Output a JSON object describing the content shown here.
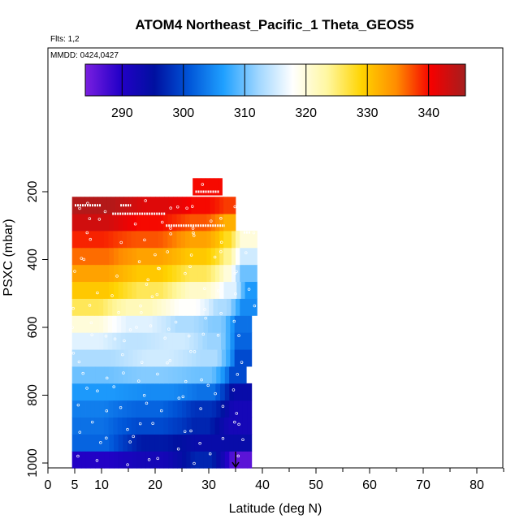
{
  "chart_data": {
    "type": "heatmap",
    "title": "ATOM4 Northeast_Pacific_1 Theta_GEOS5",
    "flights_note": "Flts: 1,2",
    "date_note": "MMDD: 0424,0427",
    "xlabel": "Latitude (deg N)",
    "ylabel": "PSXC (mbar)",
    "xlim": [
      0,
      85
    ],
    "ylim": [
      1000,
      100
    ],
    "x_ticks": [
      0,
      5,
      10,
      20,
      30,
      40,
      50,
      60,
      70,
      80
    ],
    "x_tick_labels": [
      "0",
      "5",
      "10",
      "20",
      "30",
      "40",
      "50",
      "60",
      "70",
      "80"
    ],
    "y_ticks": [
      1000,
      800,
      600,
      400,
      200
    ],
    "y_tick_labels": [
      "1000",
      "800",
      "600",
      "400",
      "200"
    ],
    "colorbar": {
      "range": [
        284,
        346
      ],
      "ticks": [
        290,
        300,
        310,
        320,
        330,
        340
      ],
      "tick_labels": [
        "290",
        "300",
        "310",
        "320",
        "330",
        "340"
      ],
      "colors": [
        "#7a1fe0",
        "#2400c8",
        "#0010a0",
        "#0055d8",
        "#1fa0ff",
        "#9fd6ff",
        "#ffffff",
        "#fff7a0",
        "#ffd400",
        "#ff8c00",
        "#f50000",
        "#a51e1e"
      ]
    },
    "marker_latitude": 35,
    "rows": [
      {
        "p": 990,
        "segments": [
          [
            4.5,
            14,
            290
          ],
          [
            14,
            25,
            292
          ],
          [
            25,
            33,
            297
          ],
          [
            33,
            38,
            286
          ]
        ]
      },
      {
        "p": 940,
        "segments": [
          [
            4.5,
            14,
            302
          ],
          [
            14,
            25,
            296
          ],
          [
            25,
            33,
            294
          ],
          [
            33,
            38,
            294
          ]
        ]
      },
      {
        "p": 890,
        "segments": [
          [
            4.5,
            13,
            303
          ],
          [
            13,
            25,
            300
          ],
          [
            25,
            32,
            297
          ],
          [
            32,
            38,
            292
          ]
        ]
      },
      {
        "p": 840,
        "segments": [
          [
            4.5,
            13,
            304
          ],
          [
            13,
            25,
            302
          ],
          [
            25,
            33,
            298
          ],
          [
            33,
            38,
            292
          ]
        ]
      },
      {
        "p": 790,
        "segments": [
          [
            4.5,
            15,
            306
          ],
          [
            15,
            26,
            305
          ],
          [
            26,
            33,
            303
          ],
          [
            33,
            38,
            294
          ]
        ]
      },
      {
        "p": 740,
        "segments": [
          [
            4.5,
            14,
            310
          ],
          [
            14,
            25,
            311
          ],
          [
            25,
            33,
            310
          ],
          [
            33,
            37,
            300
          ]
        ]
      },
      {
        "p": 690,
        "segments": [
          [
            4.5,
            15,
            313
          ],
          [
            15,
            26,
            315
          ],
          [
            26,
            34,
            313
          ],
          [
            34,
            38,
            300
          ]
        ]
      },
      {
        "p": 640,
        "segments": [
          [
            4.5,
            12,
            316
          ],
          [
            12,
            20,
            314
          ],
          [
            20,
            28,
            315
          ],
          [
            28,
            34,
            312
          ],
          [
            34,
            38,
            302
          ]
        ]
      },
      {
        "p": 590,
        "segments": [
          [
            4.5,
            12,
            320
          ],
          [
            12,
            22,
            316
          ],
          [
            22,
            29,
            313
          ],
          [
            29,
            34,
            311
          ],
          [
            34,
            38,
            303
          ]
        ]
      },
      {
        "p": 540,
        "segments": [
          [
            4.5,
            12,
            326
          ],
          [
            12,
            22,
            322
          ],
          [
            22,
            30,
            318
          ],
          [
            30,
            35,
            313
          ],
          [
            35,
            39,
            305
          ]
        ]
      },
      {
        "p": 490,
        "segments": [
          [
            4.5,
            14,
            330
          ],
          [
            14,
            24,
            326
          ],
          [
            24,
            32,
            321
          ],
          [
            32,
            36,
            316
          ],
          [
            36,
            39,
            306
          ]
        ]
      },
      {
        "p": 440,
        "segments": [
          [
            4.5,
            14,
            333
          ],
          [
            14,
            24,
            330
          ],
          [
            24,
            32,
            326
          ],
          [
            32,
            35,
            320
          ],
          [
            35,
            39,
            310
          ]
        ]
      },
      {
        "p": 390,
        "segments": [
          [
            4.5,
            14,
            336
          ],
          [
            14,
            24,
            333
          ],
          [
            24,
            32,
            330
          ],
          [
            32,
            35,
            324
          ],
          [
            35,
            39,
            315
          ]
        ]
      },
      {
        "p": 340,
        "segments": [
          [
            4.5,
            13,
            339
          ],
          [
            13,
            24,
            337
          ],
          [
            24,
            32,
            333
          ],
          [
            32,
            35,
            328
          ],
          [
            35,
            39,
            320
          ]
        ]
      },
      {
        "p": 290,
        "segments": [
          [
            4.5,
            14,
            343
          ],
          [
            14,
            24,
            340
          ],
          [
            24,
            32,
            337
          ],
          [
            32,
            35,
            332
          ]
        ]
      },
      {
        "p": 240,
        "segments": [
          [
            4.5,
            15,
            345
          ],
          [
            15,
            25,
            342
          ],
          [
            25,
            32,
            340
          ],
          [
            32,
            35,
            338
          ]
        ]
      },
      {
        "p": 185,
        "segments": [
          [
            27,
            32.5,
            340
          ]
        ]
      }
    ],
    "white_dash_lines": [
      {
        "p": 240,
        "x": [
          5,
          10
        ]
      },
      {
        "p": 240,
        "x": [
          13.5,
          15.5
        ]
      },
      {
        "p": 265,
        "x": [
          12,
          22
        ]
      },
      {
        "p": 300,
        "x": [
          22,
          33
        ]
      },
      {
        "p": 200,
        "x": [
          27.5,
          32
        ]
      },
      {
        "p": 320,
        "x": [
          36.5,
          37.8
        ]
      }
    ]
  }
}
